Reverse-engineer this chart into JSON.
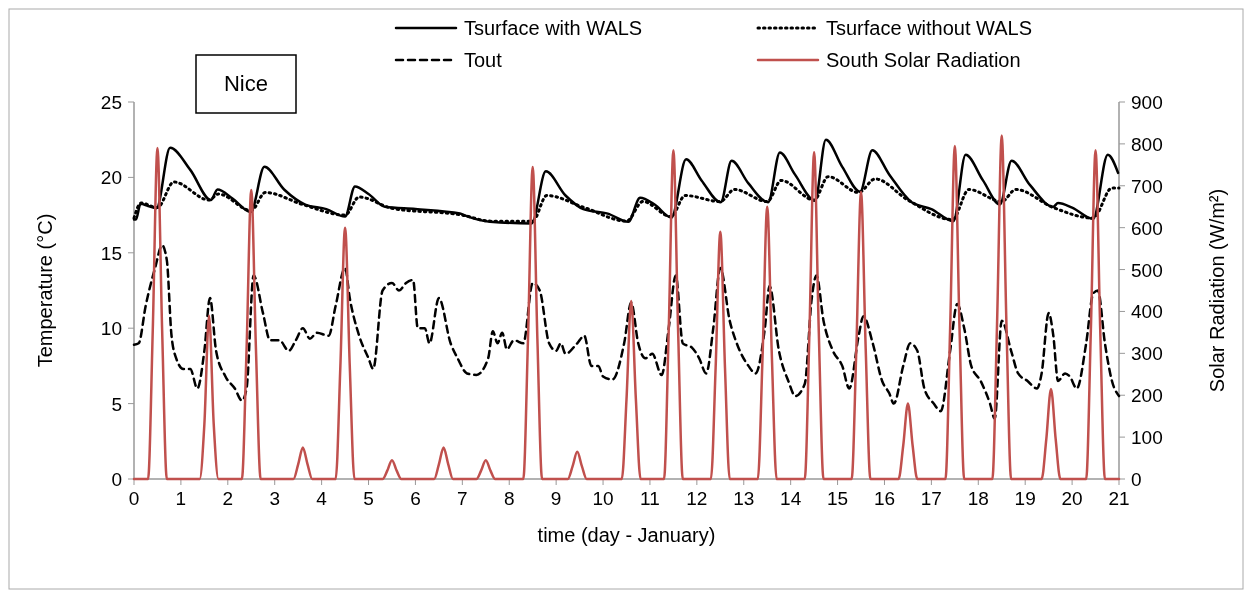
{
  "chart_data": {
    "type": "line",
    "xlabel": "time (day - January)",
    "ylabel": "Temperature (°C)",
    "y2label": "Solar Radiation (W/m²)",
    "annotations": [
      "Nice"
    ],
    "legend": "top",
    "xlim": [
      0,
      21
    ],
    "xticks": [
      0,
      1,
      2,
      3,
      4,
      5,
      6,
      7,
      8,
      9,
      10,
      11,
      12,
      13,
      14,
      15,
      16,
      17,
      18,
      19,
      20,
      21
    ],
    "ylim": [
      0,
      25
    ],
    "yticks": [
      0,
      5,
      10,
      15,
      20,
      25
    ],
    "y2lim": [
      0,
      900
    ],
    "y2ticks": [
      0,
      100,
      200,
      300,
      400,
      500,
      600,
      700,
      800,
      900
    ],
    "series": [
      {
        "name": "Tsurface with WALS",
        "color": "#000000",
        "line_style": "solid",
        "x": [
          0,
          0.04,
          0.14,
          0.3,
          0.48,
          0.77,
          1.2,
          1.64,
          1.78,
          2.1,
          2.49,
          2.78,
          3.2,
          3.65,
          4.1,
          4.5,
          4.71,
          5.0,
          5.35,
          6.0,
          6.95,
          7.12,
          7.59,
          8.48,
          8.78,
          9.2,
          9.58,
          10.1,
          10.54,
          10.79,
          11.1,
          11.46,
          11.77,
          12.1,
          12.51,
          12.74,
          13.1,
          13.52,
          13.77,
          14.09,
          14.52,
          14.75,
          15.1,
          15.48,
          15.74,
          16.1,
          16.58,
          17.0,
          17.47,
          17.73,
          18.1,
          18.46,
          18.71,
          19.1,
          19.6,
          19.7,
          20.0,
          20.45,
          20.76,
          20.98
        ],
        "values": [
          17.2,
          17.2,
          18.25,
          18.1,
          17.95,
          21.97,
          20.5,
          18.5,
          19.2,
          18.6,
          17.7,
          20.7,
          19.2,
          18.2,
          17.9,
          17.4,
          19.4,
          18.9,
          18.05,
          17.9,
          17.6,
          17.4,
          17.06,
          16.95,
          20.4,
          18.8,
          17.9,
          17.6,
          17.06,
          18.65,
          18.2,
          17.33,
          21.2,
          19.8,
          18.35,
          21.1,
          19.6,
          18.35,
          21.65,
          20.2,
          18.45,
          22.5,
          20.7,
          19.05,
          21.8,
          20.2,
          18.35,
          17.9,
          17.1,
          21.5,
          19.8,
          18.2,
          21.1,
          19.5,
          18.05,
          18.3,
          18.0,
          17.25,
          21.5,
          20.3
        ]
      },
      {
        "name": "Tsurface without WALS",
        "color": "#000000",
        "line_style": "dotted",
        "x": [
          0,
          0.15,
          0.5,
          0.85,
          1.6,
          1.8,
          2.5,
          2.8,
          3.6,
          4.5,
          4.8,
          5.5,
          7.0,
          7.6,
          8.5,
          8.8,
          9.6,
          10.5,
          10.85,
          11.45,
          11.75,
          12.5,
          12.8,
          13.5,
          13.8,
          14.5,
          14.8,
          15.45,
          15.8,
          16.5,
          17.45,
          17.8,
          18.5,
          18.8,
          19.6,
          20.45,
          20.85,
          21
        ],
        "values": [
          17.3,
          18.3,
          18.0,
          19.7,
          18.5,
          18.9,
          17.8,
          19.0,
          18.2,
          17.5,
          18.7,
          17.95,
          17.5,
          17.1,
          17.1,
          18.8,
          18.0,
          17.1,
          18.4,
          17.4,
          18.8,
          18.4,
          19.2,
          18.4,
          19.8,
          18.5,
          20.05,
          19.0,
          19.9,
          18.5,
          17.2,
          19.2,
          18.4,
          19.2,
          18.0,
          17.3,
          19.3,
          19.3
        ]
      },
      {
        "name": "Tout",
        "color": "#000000",
        "line_style": "dashed",
        "x": [
          0,
          0.1,
          0.25,
          0.45,
          0.6,
          0.7,
          0.8,
          0.9,
          1.05,
          1.2,
          1.35,
          1.5,
          1.62,
          1.75,
          1.95,
          2.15,
          2.3,
          2.4,
          2.55,
          2.75,
          2.9,
          3.1,
          3.3,
          3.45,
          3.6,
          3.75,
          3.9,
          4.15,
          4.3,
          4.5,
          4.6,
          4.8,
          5.0,
          5.1,
          5.3,
          5.5,
          5.65,
          5.8,
          5.95,
          6.05,
          6.2,
          6.3,
          6.5,
          6.75,
          6.9,
          7.1,
          7.3,
          7.55,
          7.65,
          7.75,
          7.85,
          7.95,
          8.1,
          8.3,
          8.5,
          8.65,
          8.85,
          9.0,
          9.1,
          9.2,
          9.45,
          9.6,
          9.75,
          9.9,
          10.0,
          10.2,
          10.45,
          10.6,
          10.75,
          10.9,
          11.05,
          11.25,
          11.4,
          11.55,
          11.7,
          11.9,
          12.05,
          12.2,
          12.35,
          12.5,
          12.7,
          12.85,
          13.1,
          13.25,
          13.45,
          13.55,
          13.75,
          13.95,
          14.1,
          14.3,
          14.45,
          14.55,
          14.7,
          14.9,
          15.1,
          15.25,
          15.45,
          15.55,
          15.75,
          15.95,
          16.1,
          16.2,
          16.4,
          16.55,
          16.7,
          16.85,
          17.05,
          17.2,
          17.4,
          17.55,
          17.7,
          17.85,
          18.05,
          18.25,
          18.35,
          18.5,
          18.7,
          18.85,
          19.05,
          19.25,
          19.35,
          19.5,
          19.6,
          19.7,
          19.85,
          19.95,
          20.1,
          20.3,
          20.45,
          20.55,
          20.7,
          20.85,
          21.0
        ],
        "values": [
          8.9,
          9.0,
          11.5,
          14.0,
          15.5,
          14.5,
          9.5,
          8.0,
          7.3,
          7.3,
          6.0,
          8.5,
          12.0,
          8.5,
          6.8,
          6.0,
          5.2,
          6.0,
          13.5,
          11.0,
          9.2,
          9.2,
          8.5,
          9.2,
          10.0,
          9.3,
          9.7,
          9.5,
          11.5,
          14.0,
          12.0,
          9.5,
          8.0,
          7.3,
          12.5,
          13.0,
          12.5,
          13.0,
          13.2,
          10.0,
          10.0,
          9.0,
          12.0,
          9.0,
          8.0,
          7.0,
          6.9,
          8.0,
          9.8,
          9.0,
          9.7,
          8.6,
          9.2,
          9.0,
          13.0,
          12.5,
          9.0,
          8.5,
          9.0,
          8.3,
          9.0,
          9.5,
          7.5,
          7.5,
          6.8,
          6.6,
          9.0,
          11.7,
          9.0,
          8.0,
          8.3,
          6.9,
          10.0,
          13.5,
          9.0,
          8.7,
          8.0,
          7.0,
          10.0,
          14.0,
          10.5,
          9.0,
          7.5,
          7.0,
          10.0,
          12.8,
          8.5,
          6.5,
          5.5,
          6.3,
          12.0,
          13.5,
          10.5,
          8.5,
          7.5,
          6.0,
          9.5,
          10.8,
          9.0,
          6.5,
          5.7,
          5.0,
          7.5,
          9.0,
          8.5,
          6.0,
          5.0,
          4.5,
          8.5,
          11.6,
          10.0,
          7.5,
          6.5,
          5.0,
          4.0,
          10.5,
          8.5,
          7.0,
          6.5,
          6.0,
          7.0,
          11.0,
          9.5,
          6.5,
          7.0,
          6.8,
          6.0,
          9.0,
          12.3,
          12.5,
          9.0,
          6.5,
          5.5
        ]
      },
      {
        "name": "South Solar Radiation",
        "color": "#c0504d",
        "line_style": "solid",
        "axis": "y2",
        "x": [
          0,
          0.3,
          0.4,
          0.5,
          0.6,
          0.7,
          1.4,
          1.5,
          1.6,
          1.7,
          1.8,
          2.3,
          2.4,
          2.5,
          2.6,
          2.7,
          3.4,
          3.5,
          3.6,
          3.7,
          3.8,
          4.3,
          4.4,
          4.5,
          4.6,
          4.7,
          5.3,
          5.4,
          5.5,
          5.6,
          5.7,
          6.4,
          6.5,
          6.6,
          6.7,
          6.8,
          7.3,
          7.4,
          7.5,
          7.6,
          7.7,
          8.3,
          8.4,
          8.5,
          8.6,
          8.7,
          9.25,
          9.35,
          9.45,
          9.55,
          9.65,
          10.4,
          10.5,
          10.6,
          10.7,
          10.8,
          11.3,
          11.4,
          11.5,
          11.6,
          11.7,
          12.3,
          12.4,
          12.5,
          12.6,
          12.7,
          13.3,
          13.4,
          13.5,
          13.6,
          13.7,
          14.3,
          14.4,
          14.5,
          14.6,
          14.7,
          15.3,
          15.4,
          15.5,
          15.6,
          15.7,
          16.3,
          16.4,
          16.5,
          16.6,
          16.7,
          17.3,
          17.4,
          17.5,
          17.6,
          17.7,
          18.3,
          18.4,
          18.5,
          18.6,
          18.7,
          19.35,
          19.45,
          19.55,
          19.65,
          19.75,
          20.3,
          20.4,
          20.5,
          20.6,
          20.7,
          21
        ],
        "values": [
          0,
          0,
          355,
          790,
          355,
          0,
          0,
          130,
          390,
          130,
          0,
          0,
          310,
          690,
          310,
          0,
          0,
          35,
          75,
          35,
          0,
          0,
          270,
          600,
          270,
          0,
          0,
          20,
          45,
          20,
          0,
          0,
          35,
          75,
          35,
          0,
          0,
          20,
          45,
          20,
          0,
          0,
          335,
          745,
          335,
          0,
          0,
          30,
          65,
          30,
          0,
          0,
          190,
          425,
          190,
          0,
          0,
          355,
          785,
          355,
          0,
          0,
          265,
          590,
          265,
          0,
          0,
          290,
          650,
          290,
          0,
          0,
          350,
          780,
          350,
          0,
          0,
          310,
          685,
          310,
          0,
          0,
          80,
          180,
          80,
          0,
          0,
          360,
          795,
          360,
          0,
          0,
          370,
          820,
          370,
          0,
          0,
          95,
          215,
          95,
          0,
          0,
          355,
          785,
          355,
          0,
          0
        ]
      }
    ]
  }
}
